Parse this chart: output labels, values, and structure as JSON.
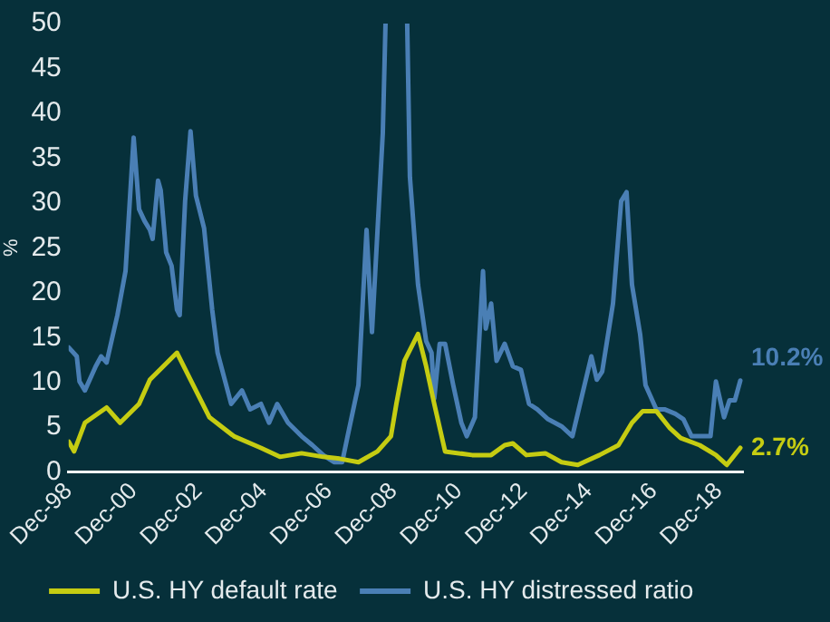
{
  "chart_data": {
    "type": "line",
    "ylabel": "%",
    "xlim": [
      "1998-12",
      "2019-09"
    ],
    "ylim": [
      0,
      50
    ],
    "xticks": [
      {
        "value": "1998-12",
        "label": "Dec-98"
      },
      {
        "value": "2000-12",
        "label": "Dec-00"
      },
      {
        "value": "2002-12",
        "label": "Dec-02"
      },
      {
        "value": "2004-12",
        "label": "Dec-04"
      },
      {
        "value": "2006-12",
        "label": "Dec-06"
      },
      {
        "value": "2008-12",
        "label": "Dec-08"
      },
      {
        "value": "2010-12",
        "label": "Dec-10"
      },
      {
        "value": "2012-12",
        "label": "Dec-12"
      },
      {
        "value": "2014-12",
        "label": "Dec-14"
      },
      {
        "value": "2016-12",
        "label": "Dec-16"
      },
      {
        "value": "2018-12",
        "label": "Dec-18"
      }
    ],
    "yticks": [
      0,
      5,
      10,
      15,
      20,
      25,
      30,
      35,
      40,
      45,
      50
    ],
    "grid": false,
    "legend": "bottom",
    "marker": "none",
    "line_style": "solid",
    "series": [
      {
        "name": "U.S. HY default rate",
        "color": "#c5cc12",
        "x": [
          "1998-12",
          "1999-02",
          "1999-06",
          "2000-02",
          "2000-07",
          "2001-02",
          "2001-06",
          "2002-04",
          "2002-09",
          "2003-04",
          "2004-01",
          "2004-11",
          "2005-06",
          "2006-02",
          "2006-10",
          "2007-04",
          "2007-11",
          "2008-06",
          "2008-11",
          "2009-01",
          "2009-04",
          "2009-09",
          "2009-12",
          "2010-03",
          "2010-07",
          "2011-05",
          "2011-12",
          "2012-05",
          "2012-08",
          "2013-01",
          "2013-08",
          "2014-02",
          "2014-08",
          "2015-04",
          "2015-11",
          "2016-04",
          "2016-08",
          "2017-01",
          "2017-06",
          "2017-10",
          "2018-05",
          "2018-11",
          "2019-03",
          "2019-08"
        ],
        "values": [
          3.4,
          2.3,
          5.5,
          7.2,
          5.5,
          7.6,
          10.3,
          13.3,
          10.3,
          6.1,
          4,
          2.7,
          1.7,
          2.1,
          1.7,
          1.5,
          1.1,
          2.3,
          4,
          7.6,
          12.4,
          15.4,
          11.8,
          7.6,
          2.3,
          1.9,
          1.9,
          3,
          3.2,
          1.9,
          2.1,
          1.1,
          0.8,
          1.9,
          3,
          5.5,
          6.8,
          6.8,
          4.9,
          3.8,
          3,
          1.9,
          0.8,
          2.7
        ]
      },
      {
        "name": "U.S. HY distressed ratio",
        "color": "#4a7fb5",
        "x": [
          "1998-12",
          "1999-03",
          "1999-04",
          "1999-06",
          "1999-10",
          "1999-12",
          "2000-02",
          "2000-06",
          "2000-09",
          "2000-12",
          "2001-02",
          "2001-04",
          "2001-06",
          "2001-07",
          "2001-09",
          "2001-10",
          "2001-12",
          "2002-02",
          "2002-04",
          "2002-05",
          "2002-07",
          "2002-09",
          "2002-11",
          "2003-02",
          "2003-05",
          "2003-07",
          "2003-12",
          "2004-04",
          "2004-07",
          "2004-11",
          "2005-02",
          "2005-05",
          "2005-09",
          "2006-02",
          "2006-06",
          "2006-10",
          "2007-02",
          "2007-05",
          "2007-07",
          "2007-11",
          "2008-02",
          "2008-04",
          "2008-08",
          "2008-09",
          "2008-11",
          "2009-05",
          "2009-06",
          "2009-09",
          "2009-12",
          "2010-02",
          "2010-03",
          "2010-05",
          "2010-07",
          "2010-10",
          "2011-01",
          "2011-03",
          "2011-06",
          "2011-09",
          "2011-10",
          "2011-12",
          "2012-02",
          "2012-05",
          "2012-08",
          "2012-11",
          "2013-02",
          "2013-05",
          "2013-09",
          "2014-02",
          "2014-06",
          "2014-10",
          "2015-01",
          "2015-03",
          "2015-05",
          "2015-09",
          "2015-12",
          "2016-02",
          "2016-04",
          "2016-07",
          "2016-09",
          "2017-01",
          "2017-04",
          "2017-08",
          "2017-11",
          "2018-02",
          "2018-06",
          "2018-09",
          "2018-11",
          "2019-02",
          "2019-04",
          "2019-06",
          "2019-08"
        ],
        "values": [
          13.9,
          12.9,
          10.1,
          9.1,
          11.8,
          12.9,
          12.2,
          17.5,
          22.4,
          37.3,
          29.3,
          28,
          27,
          26,
          32.5,
          31.4,
          24.5,
          23,
          18.1,
          17.5,
          30.2,
          38,
          30.8,
          27.2,
          18.1,
          13.3,
          7.6,
          9.1,
          7,
          7.6,
          5.5,
          7.6,
          5.5,
          4,
          3,
          1.9,
          1.1,
          1.1,
          4,
          9.7,
          27,
          15.6,
          37.8,
          50,
          null,
          50,
          32.9,
          20.9,
          14.6,
          13.3,
          8.2,
          14.3,
          14.3,
          9.7,
          5.5,
          4,
          6.1,
          22.4,
          16,
          18.8,
          12.4,
          14.3,
          11.8,
          11.4,
          7.6,
          7,
          5.9,
          5.1,
          4,
          9.1,
          12.9,
          10.3,
          11.2,
          18.8,
          30.2,
          31.2,
          20.9,
          15.4,
          9.7,
          7,
          7,
          6.5,
          5.9,
          4,
          4,
          4,
          10.1,
          6.1,
          8,
          8,
          10.2
        ]
      }
    ],
    "annotations": [
      {
        "text": "2.7%",
        "x": "2019-08",
        "y": 2.7
      },
      {
        "text": "10.2%",
        "x": "2019-08",
        "y": 10.2
      }
    ]
  }
}
